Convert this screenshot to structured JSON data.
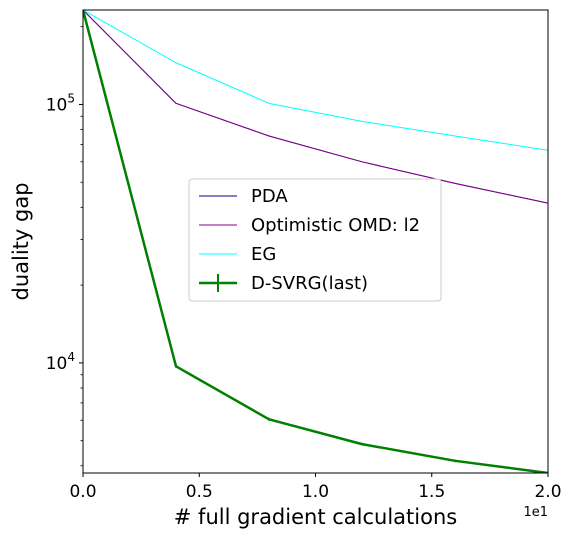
{
  "chart_data": {
    "type": "line",
    "xlabel": "# full gradient calculations",
    "ylabel": "duality gap",
    "x_offset_label": "1e1",
    "x_scale": "linear",
    "y_scale": "log",
    "xlim": [
      0.0,
      20.0
    ],
    "ylim": [
      3750,
      232000
    ],
    "x_ticks": [
      0,
      5,
      10,
      15,
      20
    ],
    "x_tick_labels": [
      "0.0",
      "0.5",
      "1.0",
      "1.5",
      "2.0"
    ],
    "y_major_ticks": [
      10000,
      100000
    ],
    "y_major_tick_labels": [
      {
        "base": "10",
        "exp": "4"
      },
      {
        "base": "10",
        "exp": "5"
      }
    ],
    "y_minor_ticks": [
      4000,
      5000,
      6000,
      7000,
      8000,
      9000,
      20000,
      30000,
      40000,
      50000,
      60000,
      70000,
      80000,
      90000,
      200000
    ],
    "grid": false,
    "legend_position": "center",
    "x": [
      0,
      4,
      8,
      12,
      16,
      20
    ],
    "series": [
      {
        "name": "PDA",
        "color": "#00008b",
        "line_width": 1,
        "values": [
          232000,
          101000,
          75500,
          60000,
          49500,
          41500
        ]
      },
      {
        "name": "Optimistic OMD: l2",
        "color": "#8b008b",
        "line_width": 1,
        "values": [
          232000,
          101000,
          75500,
          60000,
          49500,
          41500
        ]
      },
      {
        "name": "EG",
        "color": "#00ffff",
        "line_width": 1,
        "values": [
          232000,
          145000,
          101000,
          86000,
          75500,
          66500
        ]
      },
      {
        "name": "D-SVRG(last)",
        "color": "#008000",
        "line_width": 2.5,
        "error_bars": true,
        "values": [
          232000,
          9700,
          6050,
          4850,
          4180,
          3750
        ],
        "errors": [
          0,
          120,
          80,
          60,
          50,
          40
        ]
      }
    ]
  }
}
